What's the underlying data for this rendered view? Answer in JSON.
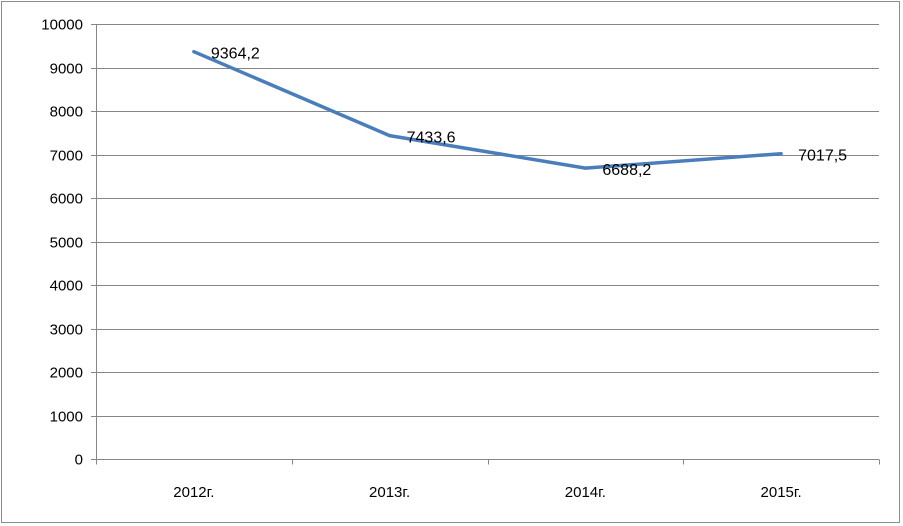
{
  "chart_data": {
    "type": "line",
    "title": "",
    "xlabel": "",
    "ylabel": "",
    "categories": [
      "2012г.",
      "2013г.",
      "2014г.",
      "2015г."
    ],
    "series": [
      {
        "values": [
          9364.2,
          7433.6,
          6688.2,
          7017.5
        ],
        "labels": [
          "9364,2",
          "7433,6",
          "6688,2",
          "7017,5"
        ],
        "color": "#4a7ebb"
      }
    ],
    "ylim": [
      0,
      10000
    ],
    "yticks": [
      0,
      1000,
      2000,
      3000,
      4000,
      5000,
      6000,
      7000,
      8000,
      9000,
      10000
    ],
    "ytick_labels": [
      "0",
      "1000",
      "2000",
      "3000",
      "4000",
      "5000",
      "6000",
      "7000",
      "8000",
      "9000",
      "10000"
    ],
    "grid": true,
    "legend": "none",
    "gridline_color": "#868686",
    "axis_color": "#868686"
  }
}
